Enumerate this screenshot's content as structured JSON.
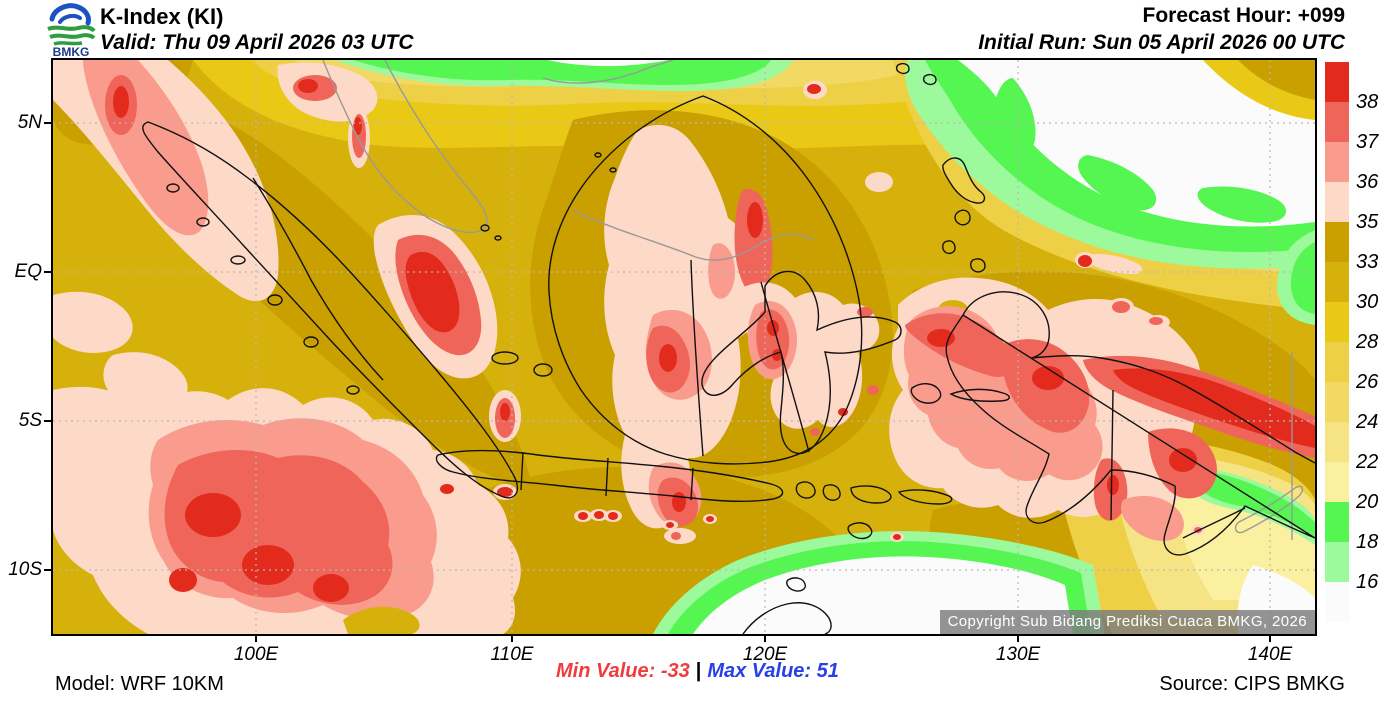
{
  "header": {
    "logo": "BMKG",
    "title": "K-Index (KI)",
    "valid": "Valid: Thu 09 April 2026 03 UTC",
    "forecast_hour": "Forecast Hour: +099",
    "initial_run": "Initial Run: Sun 05 April 2026 00 UTC"
  },
  "map": {
    "copyright": "Copyright Sub Bidang Prediksi Cuaca BMKG, 2026"
  },
  "footer": {
    "model": "Model: WRF 10KM",
    "min_value_label": "Min Value: -33",
    "separator": "|",
    "max_value_label": "Max Value: 51",
    "source": "Source: CIPS BMKG"
  },
  "chart_data": {
    "type": "heatmap",
    "title": "K-Index (KI)",
    "parameter": "K-Index",
    "model": "WRF 10KM",
    "valid_time": "Thu 09 April 2026 03 UTC",
    "initial_run": "Sun 05 April 2026 00 UTC",
    "forecast_hour": "+099",
    "min_value": -33,
    "max_value": 51,
    "x_tick_labels": [
      "100E",
      "110E",
      "120E",
      "130E",
      "140E"
    ],
    "y_tick_labels": [
      "5N",
      "EQ",
      "5S",
      "10S"
    ],
    "legend_levels": [
      38,
      37,
      36,
      35,
      33,
      30,
      28,
      26,
      24,
      22,
      20,
      18,
      16
    ],
    "legend_colors": [
      "#e32b1d",
      "#f0655a",
      "#f99b8d",
      "#fdd9c7",
      "#c9a000",
      "#d6b10c",
      "#e9c916",
      "#eed046",
      "#f2d964",
      "#f6e383",
      "#faf0a0",
      "#55f652",
      "#9cf99c",
      "#fbfbfb"
    ],
    "legend_position": "right",
    "grid": true,
    "notes": "Filled-contour K-Index over the Indonesian maritime continent: highest values (pink/red, >35) offshore NW Sumatra, SW Indian Ocean, W Kalimantan, C Sulawesi and Papua; lowest (green/white, <20) over the NW Pacific (top right) and Timor Sea (bottom centre)."
  },
  "colors": {
    "min_text": "#f03c3c",
    "max_text": "#2840e8",
    "land_outline": "#111111",
    "foreign_outline": "#999999",
    "gridline": "#b8b8b8"
  }
}
